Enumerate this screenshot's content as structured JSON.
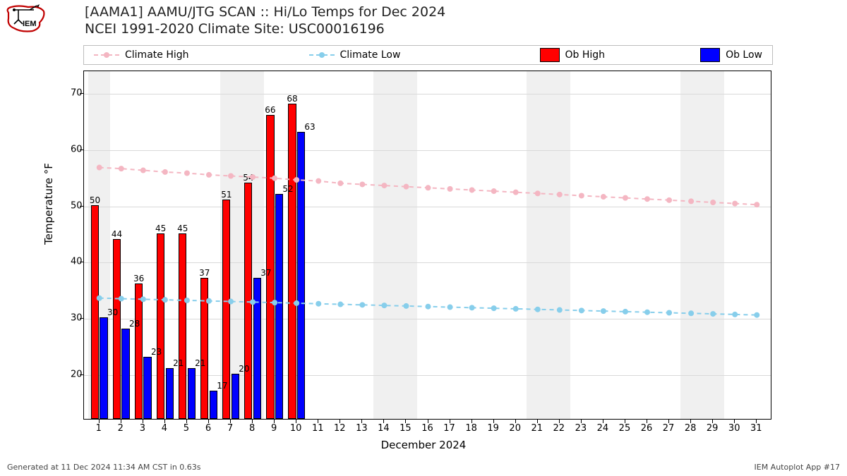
{
  "logo_text": "IEM",
  "title_line1": "[AAMA1] AAMU/JTG SCAN :: Hi/Lo Temps for Dec 2024",
  "title_line2": "NCEI 1991-2020 Climate Site: USC00016196",
  "legend": {
    "climate_high": "Climate High",
    "climate_low": "Climate Low",
    "ob_high": "Ob High",
    "ob_low": "Ob Low"
  },
  "chart": {
    "type": "bar+line",
    "x_days": [
      1,
      2,
      3,
      4,
      5,
      6,
      7,
      8,
      9,
      10,
      11,
      12,
      13,
      14,
      15,
      16,
      17,
      18,
      19,
      20,
      21,
      22,
      23,
      24,
      25,
      26,
      27,
      28,
      29,
      30,
      31
    ],
    "y_ticks": [
      20,
      30,
      40,
      50,
      60,
      70
    ],
    "ylim": [
      12,
      74
    ],
    "xlim": [
      0.3,
      31.7
    ],
    "ob_high": {
      "days": [
        1,
        2,
        3,
        4,
        5,
        6,
        7,
        8,
        9,
        10
      ],
      "values": [
        50,
        44,
        36,
        45,
        45,
        37,
        51,
        54,
        66,
        68
      ]
    },
    "ob_low": {
      "days": [
        1,
        2,
        3,
        4,
        5,
        6,
        7,
        8,
        9,
        10
      ],
      "values": [
        30,
        28,
        23,
        21,
        21,
        17,
        20,
        37,
        52,
        63
      ]
    },
    "climate_high": [
      56.9,
      56.7,
      56.4,
      56.1,
      55.9,
      55.6,
      55.4,
      55.2,
      55.0,
      54.7,
      54.5,
      54.1,
      53.9,
      53.7,
      53.5,
      53.3,
      53.1,
      52.9,
      52.7,
      52.5,
      52.3,
      52.1,
      51.9,
      51.7,
      51.5,
      51.3,
      51.1,
      50.9,
      50.7,
      50.5,
      50.3
    ],
    "climate_low": [
      33.7,
      33.6,
      33.5,
      33.4,
      33.3,
      33.2,
      33.1,
      33.0,
      32.9,
      32.8,
      32.7,
      32.6,
      32.5,
      32.4,
      32.3,
      32.2,
      32.1,
      32.0,
      31.9,
      31.8,
      31.7,
      31.6,
      31.5,
      31.4,
      31.3,
      31.2,
      31.1,
      31.0,
      30.9,
      30.8,
      30.7
    ],
    "weekend_shade_days": [
      [
        1,
        1
      ],
      [
        7,
        8
      ],
      [
        14,
        15
      ],
      [
        21,
        22
      ],
      [
        28,
        29
      ]
    ],
    "colors": {
      "ob_high": "#ff0000",
      "ob_low": "#0000ff",
      "climate_high": "#f4b6c2",
      "climate_low": "#87ceeb",
      "grid": "#d9d9d9",
      "shade": "#f0f0f0",
      "border": "#000000",
      "bg": "#ffffff"
    },
    "bar_width": 0.36,
    "line_width": 2,
    "marker_radius": 4,
    "label_fontsize": 12,
    "axis_fontsize": 13,
    "title_fontsize": 19
  },
  "ylabel": "Temperature °F",
  "xlabel": "December 2024",
  "footer_left": "Generated at 11 Dec 2024 11:34 AM CST in 0.63s",
  "footer_right": "IEM Autoplot App #17"
}
